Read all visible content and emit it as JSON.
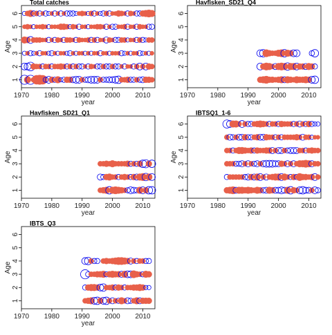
{
  "colors": {
    "positive": "#e8604a",
    "negative": "#0000ee",
    "axis": "#000000"
  },
  "chart_data": [
    {
      "type": "scatter",
      "title": "Total catches",
      "xlabel": "year",
      "ylabel": "Age",
      "xlim": [
        1970,
        2014
      ],
      "ylim": [
        0.4,
        6.6
      ],
      "xticks": [
        1970,
        1980,
        1990,
        2000,
        2010
      ],
      "yticks": [
        1,
        2,
        3,
        4,
        5,
        6
      ],
      "years": [
        1971,
        2013
      ],
      "ages": [
        1,
        6
      ],
      "encoding": "bubble residuals: filled red = positive, open blue = negative",
      "row_pattern": {
        "1": [
          -0.9,
          0.5,
          -0.9,
          0.3,
          0.9,
          1.0,
          0.9,
          -0.3,
          -0.5,
          0.4,
          -0.3,
          0.5,
          -0.2,
          -0.3,
          0.4,
          0.4,
          -0.4,
          -0.5,
          -0.5,
          0.3,
          -0.3,
          -0.4,
          -0.5,
          -0.5,
          -0.5,
          0.3,
          -0.3,
          -0.3,
          -0.4,
          -0.4,
          -0.5,
          -0.6,
          0.3,
          0.3,
          0.4,
          -0.3,
          -0.3,
          0.3,
          -0.3,
          -0.4,
          0.4,
          0.4,
          0.3
        ],
        "2": [
          -0.5,
          -0.5,
          -0.8,
          0.4,
          0.3,
          0.3,
          -0.3,
          0.3,
          0.3,
          -0.3,
          0.3,
          0.3,
          0.4,
          0.3,
          -0.3,
          0.3,
          -0.3,
          0.3,
          -0.3,
          -0.3,
          0.2,
          -0.3,
          0.3,
          0.2,
          -0.3,
          -0.3,
          0.3,
          -0.3,
          -0.3,
          0.3,
          -0.3,
          -0.3,
          0.2,
          -0.3,
          0.2,
          0.2,
          -0.3,
          0.3,
          -0.5,
          0.3,
          -0.5,
          0.4,
          0.3
        ],
        "3": [
          -0.2,
          0.2,
          -0.3,
          -0.2,
          0.2,
          -0.3,
          0.2,
          0.2,
          -0.2,
          -0.3,
          0.2,
          -0.2,
          0.2,
          0.2,
          -0.2,
          -0.3,
          0.2,
          -0.2,
          0.2,
          0.2,
          -0.2,
          0.2,
          -0.2,
          0.2,
          0.2,
          -0.3,
          0.2,
          0.2,
          -0.2,
          0.2,
          0.2,
          0.2,
          -0.3,
          -0.2,
          0.2,
          -0.2,
          0.2,
          0.2,
          -0.3,
          -0.2,
          0.2,
          -0.2,
          0.2
        ],
        "4": [
          0.5,
          0.4,
          -0.5,
          0.3,
          0.3,
          0.3,
          0.2,
          0.2,
          -0.3,
          0.2,
          -0.3,
          0.3,
          0.2,
          -0.3,
          0.3,
          0.3,
          0.2,
          -0.3,
          0.3,
          0.2,
          0.2,
          0.3,
          -0.3,
          0.3,
          -0.3,
          0.2,
          0.2,
          -0.4,
          0.3,
          0.2,
          -0.3,
          -0.3,
          0.3,
          0.3,
          -0.2,
          0.2,
          0.2,
          -0.3,
          0.3,
          -0.3,
          -0.2,
          0.3,
          0.3
        ],
        "5": [
          0.2,
          0.3,
          0.2,
          -0.2,
          0.2,
          0.2,
          0.3,
          0.2,
          -0.2,
          0.2,
          0.2,
          0.2,
          0.4,
          0.4,
          0.3,
          -0.2,
          0.3,
          0.2,
          -0.3,
          0.2,
          0.2,
          -0.2,
          0.2,
          0.2,
          0.3,
          0.3,
          0.2,
          -0.3,
          0.2,
          -0.3,
          -0.3,
          0.2,
          0.2,
          0.3,
          -0.3,
          0.2,
          0.2,
          -0.3,
          0.3,
          0.2,
          0.2,
          -0.3,
          -0.3
        ],
        "6": [
          -0.2,
          0.3,
          0.5,
          -0.3,
          0.3,
          -0.3,
          0.2,
          -0.3,
          -0.2,
          0.2,
          -0.3,
          0.2,
          -0.3,
          0.2,
          -0.3,
          -0.3,
          -0.3,
          -0.2,
          0.2,
          0.3,
          0.2,
          -0.2,
          0.3,
          -0.3,
          0.2,
          -0.2,
          -0.3,
          0.3,
          -0.3,
          0.2,
          0.2,
          0.4,
          0.3,
          0.2,
          -0.3,
          0.3,
          0.2,
          -0.3,
          -0.3,
          0.4,
          0.5,
          0.6,
          0.5
        ]
      }
    },
    {
      "type": "scatter",
      "title": "Havfisken_SD21_Q4",
      "xlabel": "year",
      "ylabel": "Age",
      "xlim": [
        1970,
        2014
      ],
      "ylim": [
        0.4,
        6.6
      ],
      "xticks": [
        1970,
        1980,
        1990,
        2000,
        2010
      ],
      "yticks": [
        1,
        2,
        3,
        4,
        5,
        6
      ],
      "years": [
        1994,
        2012
      ],
      "ages": [
        1,
        3
      ],
      "row_pattern": {
        "1": [
          0.4,
          0.5,
          0.6,
          0.4,
          0.4,
          0.3,
          0.4,
          0.5,
          -0.4,
          0.5,
          0.4,
          0.3,
          0.5,
          0.4,
          0.4,
          0.5,
          0.4,
          -0.5,
          -0.6
        ],
        "2": [
          -0.5,
          0.4,
          0.6,
          0.5,
          0.3,
          -0.4,
          0.5,
          0.6,
          0.5,
          -0.6,
          0.5,
          0.5,
          -0.5,
          0.4,
          0.4,
          -0.4,
          0.5,
          0.4,
          -0.3
        ],
        "3": [
          -0.5,
          -0.6,
          0.6,
          0.4,
          0.3,
          0.3,
          0.5,
          0.6,
          -0.6,
          0.5,
          0.4,
          -0.5,
          -0.5,
          0.0,
          0.0,
          0.0,
          0.0,
          -0.3,
          -0.6
        ]
      }
    },
    {
      "type": "scatter",
      "title": "Havfisken_SD21_Q1",
      "xlabel": "year",
      "ylabel": "Age",
      "xlim": [
        1970,
        2014
      ],
      "ylim": [
        0.4,
        6.6
      ],
      "xticks": [
        1970,
        1980,
        1990,
        2000,
        2010
      ],
      "yticks": [
        1,
        2,
        3,
        4,
        5,
        6
      ],
      "years": [
        1996,
        2013
      ],
      "ages": [
        1,
        3
      ],
      "row_pattern": {
        "1": [
          0.3,
          0.4,
          0.5,
          -0.6,
          0.5,
          0.6,
          0.5,
          0.4,
          0.3,
          -0.3,
          -0.5,
          -0.4,
          -0.3,
          0.5,
          -0.5,
          0.4,
          -0.6,
          -0.6
        ],
        "2": [
          -0.4,
          -0.3,
          0.4,
          0.5,
          0.3,
          0.3,
          -0.3,
          0.3,
          0.4,
          0.3,
          -0.3,
          0.4,
          -0.4,
          0.5,
          0.6,
          -0.6,
          0.5,
          -0.5
        ],
        "3": [
          0.3,
          0.3,
          0.4,
          0.3,
          0.5,
          0.3,
          0.3,
          0.3,
          0.3,
          0.4,
          -0.3,
          0.3,
          -0.3,
          0.4,
          -0.6,
          -0.7,
          0.4,
          -0.6
        ]
      }
    },
    {
      "type": "scatter",
      "title": "IBTSQ1_1-6",
      "xlabel": "year",
      "ylabel": "Age",
      "xlim": [
        1970,
        2014
      ],
      "ylim": [
        0.4,
        6.6
      ],
      "xticks": [
        1970,
        1980,
        1990,
        2000,
        2010
      ],
      "yticks": [
        1,
        2,
        3,
        4,
        5,
        6
      ],
      "years": [
        1983,
        2013
      ],
      "ages": [
        1,
        6
      ],
      "row_pattern": {
        "1": [
          0.4,
          0.5,
          0.6,
          -0.4,
          0.5,
          0.5,
          0.4,
          0.5,
          0.4,
          0.3,
          0.5,
          0.4,
          -0.3,
          -0.4,
          0.5,
          0.4,
          -0.4,
          -0.4,
          -0.5,
          -0.4,
          0.5,
          -0.6,
          0.4,
          0.3,
          -0.5,
          -0.6,
          -0.4,
          -0.4,
          0.3,
          -0.5,
          -0.3
        ],
        "2": [
          -0.3,
          0.3,
          0.3,
          0.3,
          0.3,
          0.3,
          -0.3,
          -0.4,
          0.4,
          -0.4,
          0.5,
          -0.5,
          0.3,
          -0.4,
          0.3,
          0.4,
          0.5,
          0.5,
          -0.5,
          0.5,
          0.3,
          -0.3,
          0.4,
          -0.3,
          0.6,
          0.4,
          0.4,
          0.3,
          0.4,
          -0.5,
          0.3
        ],
        "3": [
          0.3,
          0.3,
          0.3,
          -0.3,
          -0.3,
          -0.4,
          0.3,
          -0.4,
          0.3,
          -0.3,
          -0.4,
          0.3,
          -0.4,
          -0.5,
          -0.5,
          -0.5,
          -0.4,
          -0.4,
          0.4,
          0.3,
          -0.4,
          0.3,
          -0.4,
          0.3,
          0.5,
          0.5,
          0.6,
          0.5,
          -0.4,
          0.3,
          0.3
        ],
        "4": [
          0.3,
          0.3,
          -0.3,
          0.3,
          0.5,
          0.5,
          0.4,
          0.3,
          0.4,
          -0.3,
          0.4,
          0.3,
          0.3,
          0.4,
          0.4,
          -0.4,
          0.3,
          -0.4,
          -0.4,
          0.3,
          -0.3,
          -0.4,
          -0.4,
          -0.4,
          0.3,
          0.3,
          -0.3,
          0.3,
          0.4,
          0.3,
          0.3
        ],
        "5": [
          0.3,
          -0.4,
          -0.3,
          0.3,
          -0.4,
          -0.4,
          0.4,
          -0.3,
          -0.3,
          0.3,
          0.4,
          -0.4,
          -0.4,
          0.4,
          0.3,
          0.3,
          -0.3,
          0.3,
          -0.3,
          0.3,
          0.3,
          0.3,
          0.3,
          0.4,
          0.3,
          -0.4,
          0.3,
          0.3,
          -0.2,
          0.2,
          0.2
        ],
        "6": [
          -0.7,
          -0.5,
          0.5,
          0.5,
          0.3,
          -0.5,
          0.3,
          -0.3,
          -0.3,
          0.3,
          0.4,
          0.5,
          0.4,
          0.3,
          -0.3,
          0.3,
          0.3,
          -0.3,
          0.4,
          0.3,
          0.3,
          0.3,
          -0.3,
          0.3,
          -0.4,
          0.3,
          -0.3,
          0.4,
          -0.3,
          -0.2,
          -0.2
        ]
      }
    },
    {
      "type": "scatter",
      "title": "IBTS_Q3",
      "xlabel": "year",
      "ylabel": "Age",
      "xlim": [
        1970,
        2014
      ],
      "ylim": [
        0.4,
        6.6
      ],
      "xticks": [
        1970,
        1980,
        1990,
        2000,
        2010
      ],
      "yticks": [
        1,
        2,
        3,
        4,
        5,
        6
      ],
      "years": [
        1991,
        2012
      ],
      "ages": [
        1,
        4
      ],
      "row_pattern": {
        "1": [
          0.3,
          0.4,
          0.5,
          -0.5,
          -0.6,
          0.4,
          -0.5,
          -0.6,
          0.3,
          -0.4,
          0.3,
          -0.3,
          0.5,
          0.3,
          -0.4,
          -0.3,
          0.3,
          0.5,
          -0.4,
          0.4,
          0.4,
          0.4
        ],
        "2": [
          -0.3,
          0.4,
          0.5,
          0.5,
          0.4,
          -0.5,
          -0.6,
          0.3,
          0.3,
          0.4,
          -0.3,
          0.4,
          0.3,
          -0.3,
          0.3,
          0.3,
          0.4,
          0.4,
          0.5,
          0.4,
          -0.2,
          -0.2
        ],
        "3": [
          -0.9,
          -0.3,
          0.3,
          0.3,
          0.4,
          0.4,
          0.5,
          -0.3,
          0.4,
          0.5,
          0.4,
          0.4,
          -0.4,
          0.5,
          -0.5,
          -0.5,
          0.6,
          0.4,
          0.3,
          -0.3,
          0.5,
          0.4
        ],
        "4": [
          -0.5,
          -0.6,
          0.3,
          -0.3,
          -0.3,
          0.0,
          0.3,
          0.4,
          0.3,
          0.4,
          0.5,
          0.6,
          0.6,
          0.5,
          0.4,
          -0.4,
          0.3,
          -0.3,
          0.3,
          0.3,
          -0.3,
          -0.3
        ]
      }
    }
  ]
}
